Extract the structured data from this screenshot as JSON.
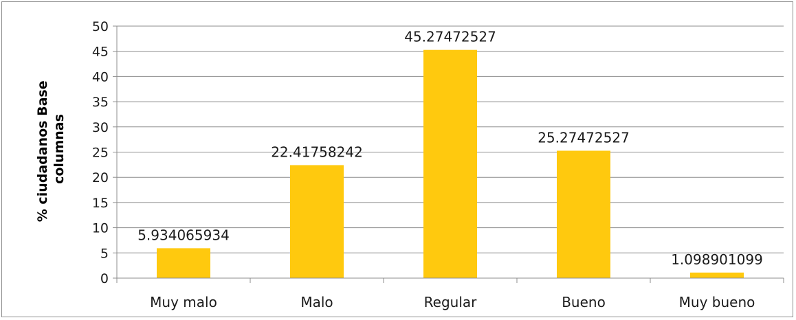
{
  "chart_data": {
    "type": "bar",
    "title": "",
    "xlabel": "",
    "ylabel_lines": [
      "% ciudadanos Base",
      "columnas"
    ],
    "categories": [
      "Muy malo",
      "Malo",
      "Regular",
      "Bueno",
      "Muy bueno"
    ],
    "values": [
      5.934065934,
      22.41758242,
      45.27472527,
      25.27472527,
      1.098901099
    ],
    "value_labels": [
      "5.934065934",
      "22.41758242",
      "45.27472527",
      "25.27472527",
      "1.098901099"
    ],
    "ylim": [
      0,
      50
    ],
    "yticks": [
      0,
      5,
      10,
      15,
      20,
      25,
      30,
      35,
      40,
      45,
      50
    ],
    "grid": true,
    "legend": "none",
    "bar_color": "#FFC90E"
  }
}
